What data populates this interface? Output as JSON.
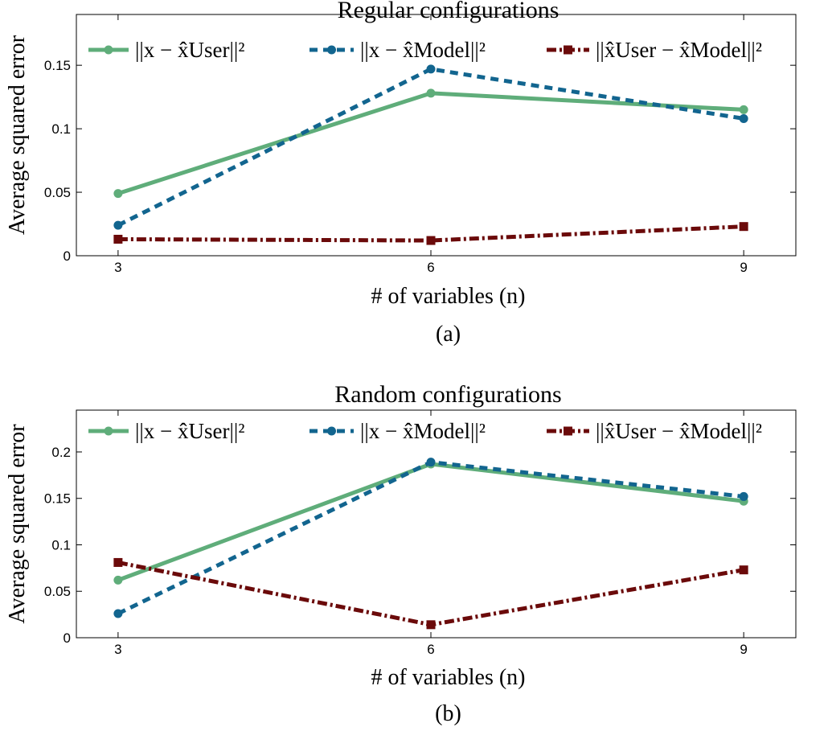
{
  "chart_data": [
    {
      "type": "line",
      "title": "Regular configurations",
      "xlabel": "# of variables (n)",
      "ylabel": "Average squared error",
      "caption": "(a)",
      "x": [
        3,
        6,
        9
      ],
      "xticks": [
        "3",
        "6",
        "9"
      ],
      "xlim": [
        2.6,
        9.5
      ],
      "ylim": [
        0,
        0.19
      ],
      "yticks": [
        0,
        0.05,
        0.1,
        0.15
      ],
      "ytick_labels": [
        "0",
        "0.05",
        "0.1",
        "0.15"
      ],
      "legend_position": "top",
      "grid": false,
      "series": [
        {
          "name": "||x − x̂User||²",
          "values": [
            0.049,
            0.128,
            0.115
          ],
          "color": "#5fad7a",
          "style": "solid",
          "marker": "circle"
        },
        {
          "name": "||x − x̂Model||²",
          "values": [
            0.024,
            0.147,
            0.108
          ],
          "color": "#12658f",
          "style": "dotted",
          "marker": "circle"
        },
        {
          "name": "||x̂User − x̂Model||²",
          "values": [
            0.013,
            0.012,
            0.023
          ],
          "color": "#6b0a0a",
          "style": "dashdot",
          "marker": "square"
        }
      ]
    },
    {
      "type": "line",
      "title": "Random configurations",
      "xlabel": "# of variables (n)",
      "ylabel": "Average squared error",
      "caption": "(b)",
      "x": [
        3,
        6,
        9
      ],
      "xticks": [
        "3",
        "6",
        "9"
      ],
      "xlim": [
        2.6,
        9.5
      ],
      "ylim": [
        0,
        0.245
      ],
      "yticks": [
        0,
        0.05,
        0.1,
        0.15,
        0.2
      ],
      "ytick_labels": [
        "0",
        "0.05",
        "0.1",
        "0.15",
        "0.2"
      ],
      "legend_position": "top",
      "grid": false,
      "series": [
        {
          "name": "||x − x̂User||²",
          "values": [
            0.062,
            0.187,
            0.147
          ],
          "color": "#5fad7a",
          "style": "solid",
          "marker": "circle"
        },
        {
          "name": "||x − x̂Model||²",
          "values": [
            0.026,
            0.189,
            0.152
          ],
          "color": "#12658f",
          "style": "dotted",
          "marker": "circle"
        },
        {
          "name": "||x̂User − x̂Model||²",
          "values": [
            0.081,
            0.014,
            0.073
          ],
          "color": "#6b0a0a",
          "style": "dashdot",
          "marker": "square"
        }
      ]
    }
  ]
}
